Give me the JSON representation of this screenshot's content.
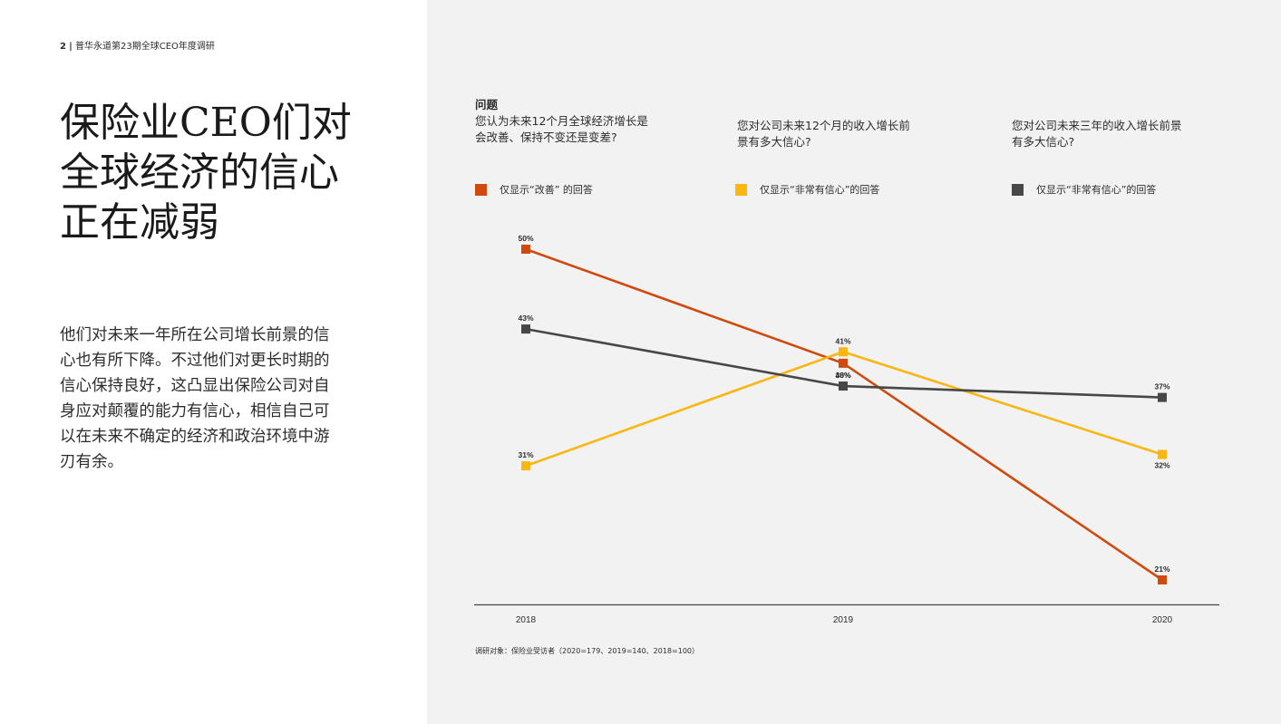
{
  "header": {
    "page_number": "2",
    "separator": "|",
    "report_title": "普华永道第23期全球CEO年度调研"
  },
  "title_lines": [
    "保险业CEO们对",
    "全球经济的信心",
    "正在减弱"
  ],
  "body_lines": [
    "他们对未来一年所在公司增长前景的信",
    "心也有所下降。不过他们对更长时期的",
    "信心保持良好，这凸显出保险公司对自",
    "身应对颠覆的能力有信心，相信自己可",
    "以在未来不确定的经济和政治环境中游",
    "刃有余。"
  ],
  "questions": {
    "label": "问题",
    "q1": [
      "您认为未来12个月全球经济增长是",
      "会改善、保持不变还是变差?"
    ],
    "q2": [
      "您对公司未来12个月的收入增长前",
      "景有多大信心?"
    ],
    "q3": [
      "您对公司未来三年的收入增长前景",
      "有多大信心?"
    ]
  },
  "legend": {
    "item1": "仅显示“改善” 的回答",
    "item2": "仅显示“非常有信心”的回答",
    "item3": "仅显示“非常有信心”的回答"
  },
  "colors": {
    "orange": "#cf4a0c",
    "yellow": "#fbb612",
    "gray": "#474747"
  },
  "footnote": "调研对象：保险业受访者（2020=179、2019=140、2018=100）",
  "chart_data": {
    "type": "line",
    "x": [
      "2018",
      "2019",
      "2020"
    ],
    "ylim": [
      15,
      55
    ],
    "series": [
      {
        "name": "仅显示“改善” 的回答",
        "color": "#cf4a0c",
        "values": [
          50,
          40,
          21
        ],
        "labels": [
          "50%",
          "40%",
          "21%"
        ]
      },
      {
        "name": "仅显示“非常有信心”的回答",
        "color": "#fbb612",
        "values": [
          31,
          41,
          32
        ],
        "labels": [
          "31%",
          "41%",
          "32%"
        ]
      },
      {
        "name": "仅显示“非常有信心”的回答",
        "color": "#474747",
        "values": [
          43,
          38,
          37
        ],
        "labels": [
          "43%",
          "38%",
          "37%"
        ]
      }
    ]
  }
}
